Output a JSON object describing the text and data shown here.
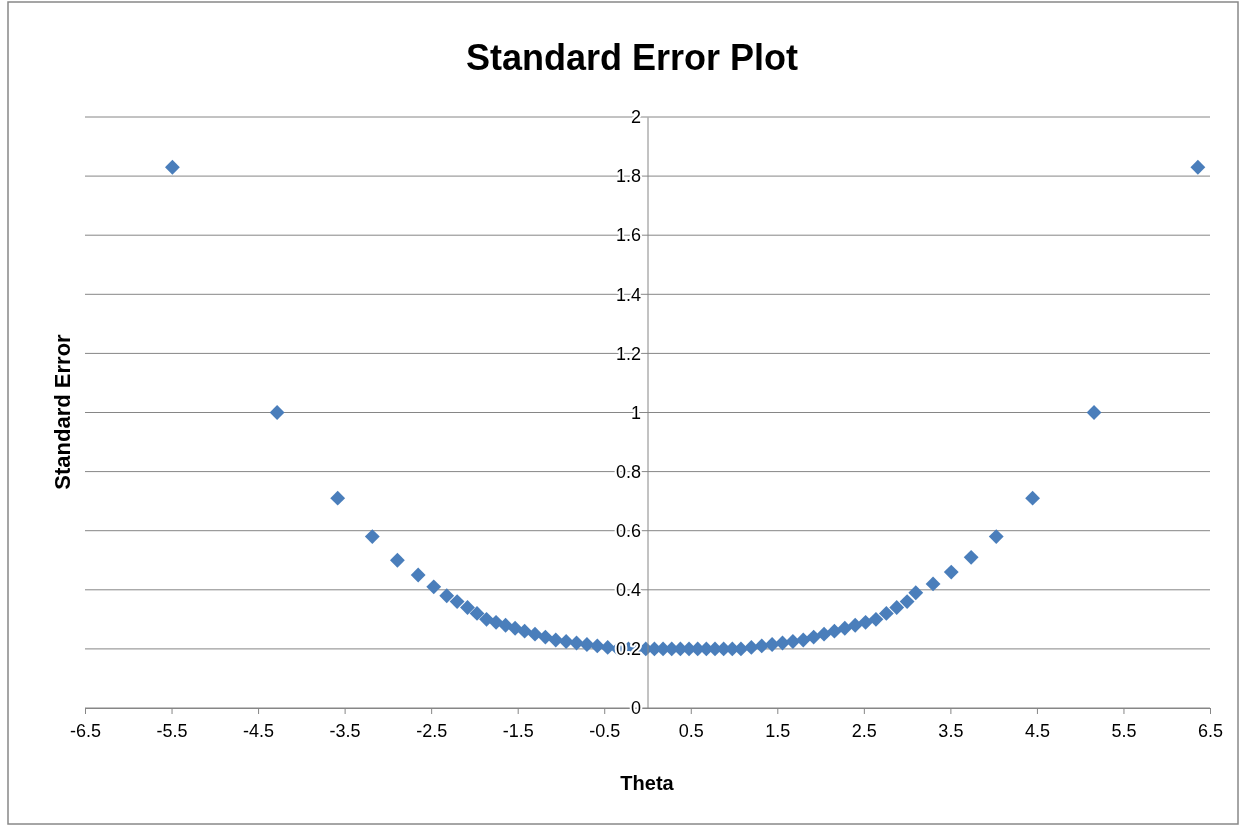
{
  "chart_data": {
    "type": "scatter",
    "title": "Standard Error Plot",
    "xlabel": "Theta",
    "ylabel": "Standard Error",
    "marker": "diamond",
    "grid": "y",
    "xlim": [
      -6.5,
      6.5
    ],
    "xticks": [
      -6.5,
      -5.5,
      -4.5,
      -3.5,
      -2.5,
      -1.5,
      -0.5,
      0.5,
      1.5,
      2.5,
      3.5,
      4.5,
      5.5,
      6.5
    ],
    "ylim": [
      0,
      2
    ],
    "yticks": [
      0,
      0.2,
      0.4,
      0.6,
      0.8,
      1,
      1.2,
      1.4,
      1.6,
      1.8,
      2
    ],
    "series": [
      {
        "color": "#4a7ebb",
        "x": [
          -5.49,
          -4.28,
          -3.58,
          -3.18,
          -2.89,
          -2.65,
          -2.47,
          -2.32,
          -2.2,
          -2.08,
          -1.97,
          -1.86,
          -1.75,
          -1.64,
          -1.53,
          -1.42,
          -1.3,
          -1.18,
          -1.06,
          -0.94,
          -0.82,
          -0.7,
          -0.58,
          -0.46,
          -0.34,
          -0.22,
          -0.12,
          -0.02,
          0.08,
          0.18,
          0.28,
          0.38,
          0.48,
          0.58,
          0.68,
          0.78,
          0.88,
          0.98,
          1.08,
          1.2,
          1.32,
          1.44,
          1.56,
          1.68,
          1.8,
          1.92,
          2.04,
          2.16,
          2.28,
          2.4,
          2.52,
          2.64,
          2.76,
          2.88,
          3.0,
          3.1,
          3.3,
          3.51,
          3.74,
          4.03,
          4.45,
          5.16,
          6.36
        ],
        "values": [
          1.83,
          1.0,
          0.71,
          0.58,
          0.5,
          0.45,
          0.41,
          0.38,
          0.36,
          0.34,
          0.32,
          0.3,
          0.29,
          0.28,
          0.27,
          0.26,
          0.25,
          0.24,
          0.23,
          0.225,
          0.22,
          0.215,
          0.21,
          0.205,
          0.2,
          0.2,
          0.2,
          0.2,
          0.2,
          0.2,
          0.2,
          0.2,
          0.2,
          0.2,
          0.2,
          0.2,
          0.2,
          0.2,
          0.2,
          0.205,
          0.21,
          0.215,
          0.22,
          0.225,
          0.23,
          0.24,
          0.25,
          0.26,
          0.27,
          0.28,
          0.29,
          0.3,
          0.32,
          0.34,
          0.36,
          0.39,
          0.42,
          0.46,
          0.51,
          0.58,
          0.71,
          1.0,
          1.83
        ]
      }
    ]
  }
}
